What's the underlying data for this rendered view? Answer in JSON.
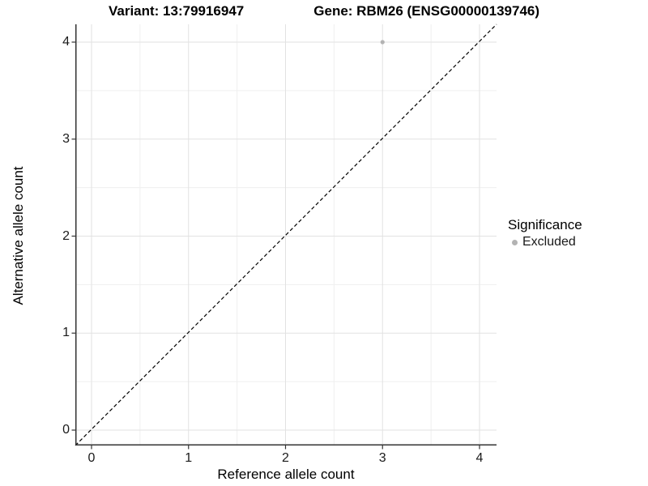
{
  "title": {
    "variant": "Variant: 13:79916947",
    "gene": "Gene: RBM26 (ENSG00000139746)"
  },
  "chart_data": {
    "type": "scatter",
    "title": "Variant: 13:79916947   Gene: RBM26 (ENSG00000139746)",
    "xlabel": "Reference allele count",
    "ylabel": "Alternative allele count",
    "xlim": [
      -0.17,
      4.17
    ],
    "ylim": [
      -0.17,
      4.17
    ],
    "x_ticks": [
      0,
      1,
      2,
      3,
      4
    ],
    "y_ticks": [
      0,
      1,
      2,
      3,
      4
    ],
    "minor_gridlines": [
      0.5,
      1.5,
      2.5,
      3.5
    ],
    "grid": true,
    "series": [
      {
        "name": "Excluded",
        "color": "#b3b3b3",
        "points": [
          {
            "x": 3,
            "y": 4
          }
        ]
      }
    ],
    "reference_line": {
      "kind": "identity-diagonal",
      "style": "dashed",
      "color": "#000000"
    },
    "legend": {
      "title": "Significance",
      "position": "right",
      "entries": [
        {
          "label": "Excluded",
          "color": "#b3b3b3"
        }
      ]
    }
  },
  "colors": {
    "grid_major": "#e2e2e2",
    "grid_minor": "#efefef",
    "axis_line": "#333333",
    "tick_mark": "#333333",
    "excluded": "#b3b3b3"
  }
}
